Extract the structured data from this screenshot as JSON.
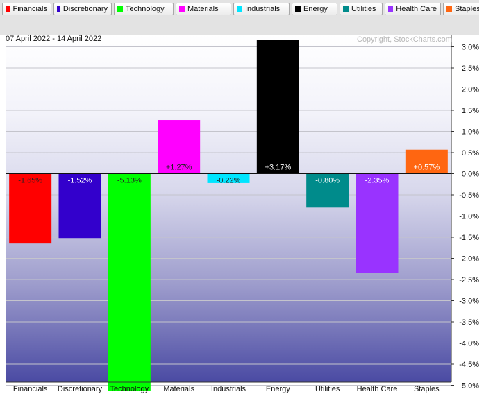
{
  "legend": [
    {
      "label": "Financials",
      "color": "#ff0000"
    },
    {
      "label": "Discretionary",
      "color": "#3300cc"
    },
    {
      "label": "Technology",
      "color": "#00ff00"
    },
    {
      "label": "Materials",
      "color": "#ff00ff"
    },
    {
      "label": "Industrials",
      "color": "#00e5ff"
    },
    {
      "label": "Energy",
      "color": "#000000"
    },
    {
      "label": "Utilities",
      "color": "#008b8b"
    },
    {
      "label": "Health Care",
      "color": "#9933ff"
    },
    {
      "label": "Staples",
      "color": "#ff6611"
    }
  ],
  "header": {
    "date_range": "07 April 2022 - 14 April 2022",
    "copyright": "Copyright, StockCharts.com"
  },
  "chart_data": {
    "type": "bar",
    "categories": [
      "Financials",
      "Discretionary",
      "Technology",
      "Materials",
      "Industrials",
      "Energy",
      "Utilities",
      "Health Care",
      "Staples"
    ],
    "values": [
      -1.65,
      -1.52,
      -5.13,
      1.27,
      -0.22,
      3.17,
      -0.8,
      -2.35,
      0.57
    ],
    "data_labels": [
      "-1.65%",
      "-1.52%",
      "-5.13%",
      "+1.27%",
      "-0.22%",
      "+3.17%",
      "-0.80%",
      "-2.35%",
      "+0.57%"
    ],
    "colors": [
      "#ff0000",
      "#3300cc",
      "#00ff00",
      "#ff00ff",
      "#00e5ff",
      "#000000",
      "#008b8b",
      "#9933ff",
      "#ff6611"
    ],
    "label_colors": [
      "#222222",
      "#ffffff",
      "#222222",
      "#222222",
      "#222222",
      "#ffffff",
      "#ffffff",
      "#ffffff",
      "#ffffff"
    ],
    "ylim": [
      -5.2,
      3.2
    ],
    "yticks": [
      3.0,
      2.5,
      2.0,
      1.5,
      1.0,
      0.5,
      0.0,
      -0.5,
      -1.0,
      -1.5,
      -2.0,
      -2.5,
      -3.0,
      -3.5,
      -4.0,
      -4.5,
      -5.0
    ],
    "ytick_labels": [
      "3.0%",
      "2.5%",
      "2.0%",
      "1.5%",
      "1.0%",
      "0.5%",
      "0.0%",
      "-0.5%",
      "-1.0%",
      "-1.5%",
      "-2.0%",
      "-2.5%",
      "-3.0%",
      "-3.5%",
      "-4.0%",
      "-4.5%",
      "-5.0%"
    ],
    "y_axis_side": "right",
    "grid": true
  }
}
